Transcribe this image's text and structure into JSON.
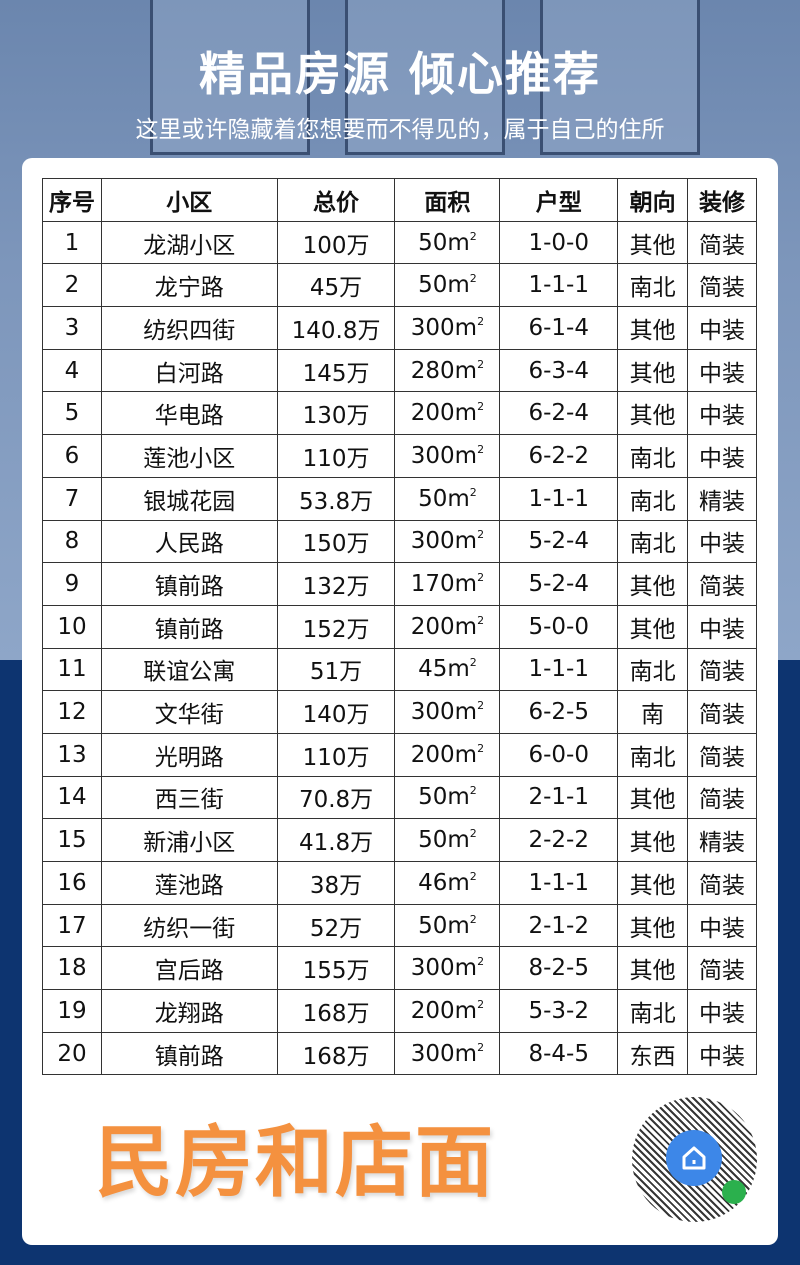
{
  "header": {
    "title": "精品房源 倾心推荐",
    "subtitle": "这里或许隐藏着您想要而不得见的，属于自己的住所"
  },
  "table": {
    "columns": [
      "序号",
      "小区",
      "总价",
      "面积",
      "户型",
      "朝向",
      "装修"
    ],
    "area_unit": "m²",
    "rows": [
      [
        "1",
        "龙湖小区",
        "100万",
        "50",
        "1-0-0",
        "其他",
        "简装"
      ],
      [
        "2",
        "龙宁路",
        "45万",
        "50",
        "1-1-1",
        "南北",
        "简装"
      ],
      [
        "3",
        "纺织四街",
        "140.8万",
        "300",
        "6-1-4",
        "其他",
        "中装"
      ],
      [
        "4",
        "白河路",
        "145万",
        "280",
        "6-3-4",
        "其他",
        "中装"
      ],
      [
        "5",
        "华电路",
        "130万",
        "200",
        "6-2-4",
        "其他",
        "中装"
      ],
      [
        "6",
        "莲池小区",
        "110万",
        "300",
        "6-2-2",
        "南北",
        "中装"
      ],
      [
        "7",
        "银城花园",
        "53.8万",
        "50",
        "1-1-1",
        "南北",
        "精装"
      ],
      [
        "8",
        "人民路",
        "150万",
        "300",
        "5-2-4",
        "南北",
        "中装"
      ],
      [
        "9",
        "镇前路",
        "132万",
        "170",
        "5-2-4",
        "其他",
        "简装"
      ],
      [
        "10",
        "镇前路",
        "152万",
        "200",
        "5-0-0",
        "其他",
        "中装"
      ],
      [
        "11",
        "联谊公寓",
        "51万",
        "45",
        "1-1-1",
        "南北",
        "简装"
      ],
      [
        "12",
        "文华街",
        "140万",
        "300",
        "6-2-5",
        "南",
        "简装"
      ],
      [
        "13",
        "光明路",
        "110万",
        "200",
        "6-0-0",
        "南北",
        "简装"
      ],
      [
        "14",
        "西三街",
        "70.8万",
        "50",
        "2-1-1",
        "其他",
        "简装"
      ],
      [
        "15",
        "新浦小区",
        "41.8万",
        "50",
        "2-2-2",
        "其他",
        "精装"
      ],
      [
        "16",
        "莲池路",
        "38万",
        "46",
        "1-1-1",
        "其他",
        "简装"
      ],
      [
        "17",
        "纺织一街",
        "52万",
        "50",
        "2-1-2",
        "其他",
        "中装"
      ],
      [
        "18",
        "宫后路",
        "155万",
        "300",
        "8-2-5",
        "其他",
        "简装"
      ],
      [
        "19",
        "龙翔路",
        "168万",
        "200",
        "5-3-2",
        "南北",
        "中装"
      ],
      [
        "20",
        "镇前路",
        "168万",
        "300",
        "8-4-5",
        "东西",
        "中装"
      ]
    ]
  },
  "footer": {
    "slogan": "民房和店面",
    "qr_icon": "house-icon",
    "slogan_color": "#f4913f"
  }
}
